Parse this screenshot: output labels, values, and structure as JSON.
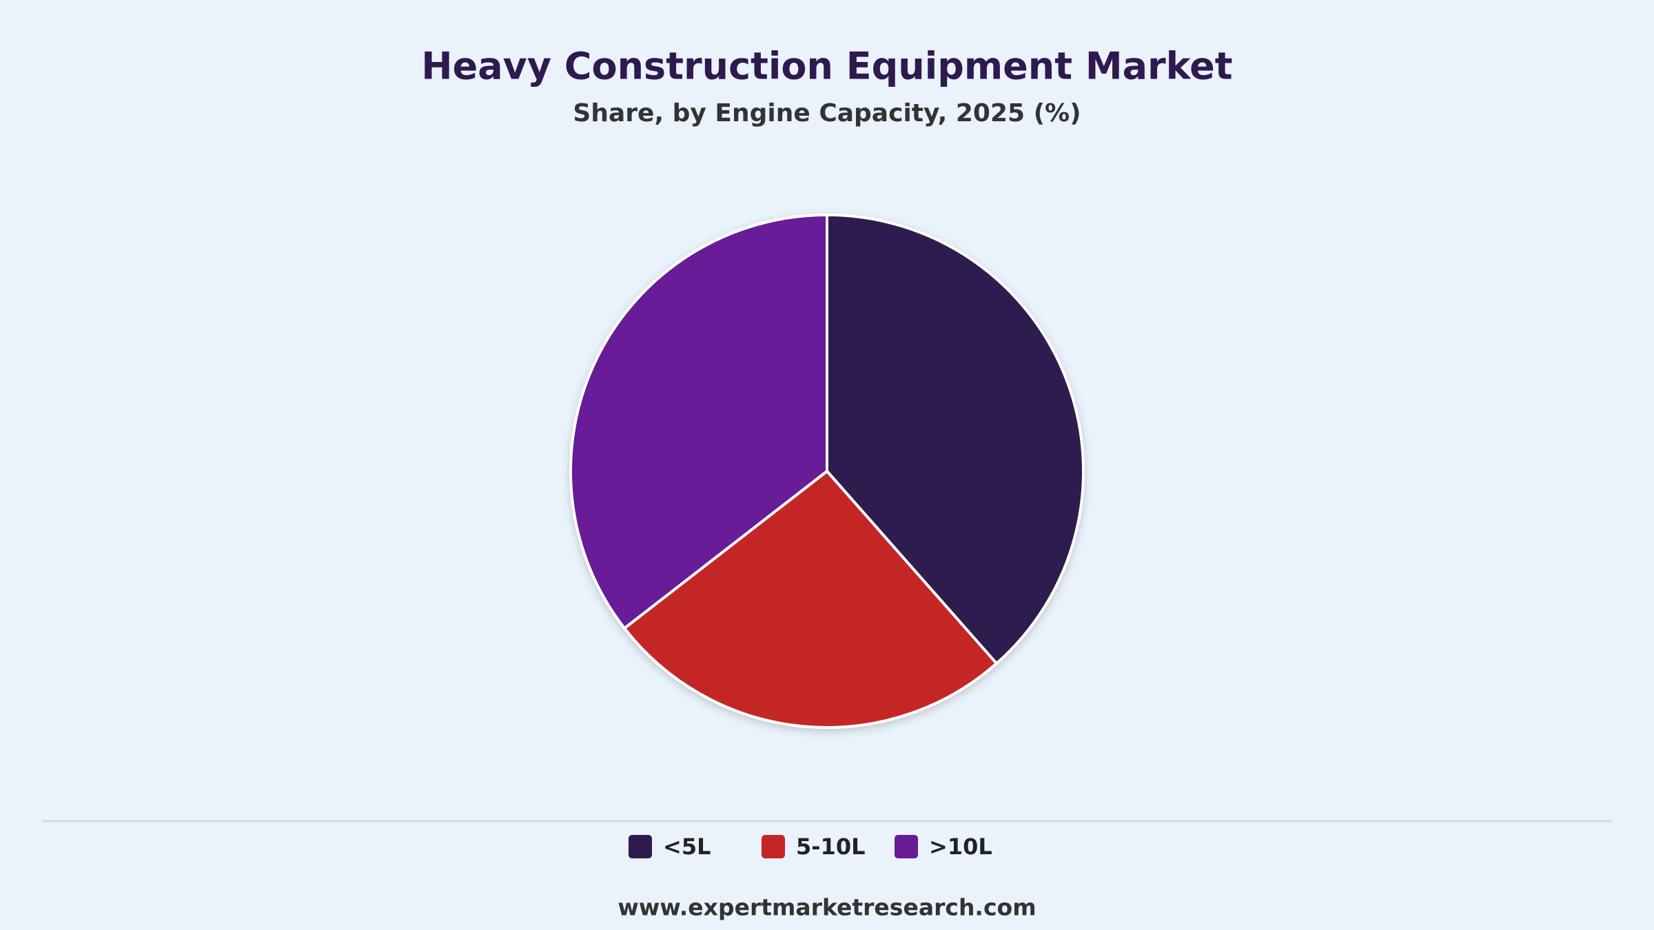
{
  "chart_data": {
    "type": "pie",
    "title": "Heavy Construction Equipment Market",
    "subtitle": "Share, by Engine Capacity, 2025 (%)",
    "categories": [
      "<5L",
      "5-10L",
      ">10L"
    ],
    "values": [
      38.5,
      26,
      35.5
    ],
    "colors": [
      "#2e1a4f",
      "#c42525",
      "#671b97"
    ],
    "legend": "bottom",
    "footer": "www.expertmarketresearch.com"
  }
}
